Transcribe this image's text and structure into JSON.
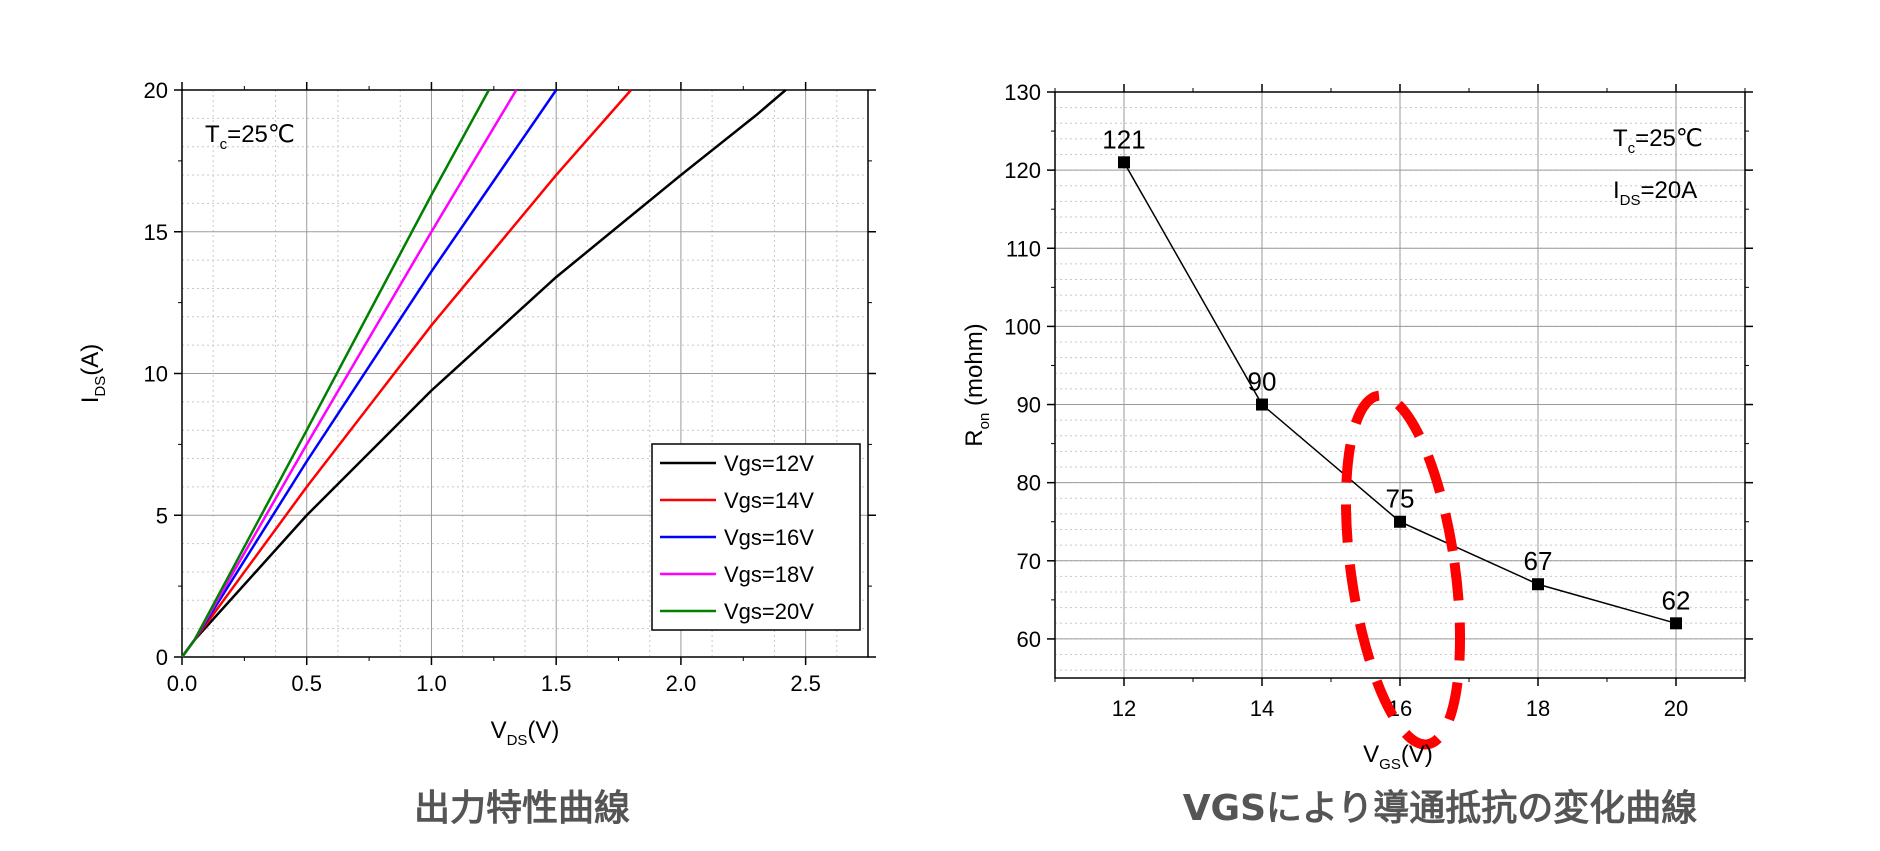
{
  "chart_data": [
    {
      "type": "line",
      "caption": "出力特性曲線",
      "annotation": {
        "main": "T",
        "sub": "c",
        "rest": "=25℃"
      },
      "xlabel": {
        "main": "V",
        "sub": "DS",
        "rest": "(V)"
      },
      "ylabel": {
        "main": "I",
        "sub": "DS",
        "rest": "(A)"
      },
      "xlim": [
        0,
        2.75
      ],
      "ylim": [
        0,
        20
      ],
      "xticks": [
        0.0,
        0.5,
        1.0,
        1.5,
        2.0,
        2.5
      ],
      "xtick_labels": [
        "0.0",
        "0.5",
        "1.0",
        "1.5",
        "2.0",
        "2.5"
      ],
      "yticks": [
        0,
        5,
        10,
        15,
        20
      ],
      "ytick_labels": [
        "0",
        "5",
        "10",
        "15",
        "20"
      ],
      "grid": true,
      "legend_position": "bottom-right",
      "series": [
        {
          "name": "Vgs=12V",
          "color": "#000000",
          "x": [
            0,
            0.05,
            0.5,
            1.0,
            1.5,
            2.0,
            2.3,
            2.42
          ],
          "y": [
            0,
            0.6,
            5.0,
            9.4,
            13.4,
            17.0,
            19.1,
            20
          ]
        },
        {
          "name": "Vgs=14V",
          "color": "#ff0000",
          "x": [
            0,
            0.05,
            0.5,
            1.0,
            1.5,
            1.8
          ],
          "y": [
            0,
            0.6,
            6.0,
            11.7,
            17.0,
            20
          ]
        },
        {
          "name": "Vgs=16V",
          "color": "#0000ff",
          "x": [
            0,
            0.05,
            0.5,
            1.0,
            1.5
          ],
          "y": [
            0,
            0.6,
            6.9,
            13.6,
            20
          ]
        },
        {
          "name": "Vgs=18V",
          "color": "#ff00ff",
          "x": [
            0,
            0.05,
            0.5,
            1.0,
            1.34
          ],
          "y": [
            0,
            0.6,
            7.5,
            15.0,
            20
          ]
        },
        {
          "name": "Vgs=20V",
          "color": "#008000",
          "x": [
            0,
            0.05,
            0.5,
            1.0,
            1.23
          ],
          "y": [
            0,
            0.6,
            8.0,
            16.3,
            20
          ]
        }
      ]
    },
    {
      "type": "line",
      "caption": "VGSにより導通抵抗の変化曲線",
      "annotations": [
        {
          "main": "T",
          "sub": "c",
          "rest": "=25℃"
        },
        {
          "main": "I",
          "sub": "DS",
          "rest": "=20A"
        }
      ],
      "xlabel": {
        "main": "V",
        "sub": "GS",
        "rest": "(V)"
      },
      "ylabel": {
        "main": "R",
        "sub": "on",
        "rest": " (mohm)"
      },
      "xlim": [
        11,
        21
      ],
      "ylim": [
        55,
        130
      ],
      "xticks": [
        12,
        14,
        16,
        18,
        20
      ],
      "xtick_labels": [
        "12",
        "14",
        "16",
        "18",
        "20"
      ],
      "yticks": [
        60,
        70,
        80,
        90,
        100,
        110,
        120,
        130
      ],
      "ytick_labels": [
        "60",
        "70",
        "80",
        "90",
        "100",
        "110",
        "120",
        "130"
      ],
      "grid": true,
      "highlight": {
        "shape": "dashed-ellipse",
        "color": "#ff0000",
        "around_x": 16
      },
      "series": [
        {
          "color": "#000000",
          "x": [
            12,
            14,
            16,
            18,
            20
          ],
          "y": [
            121,
            90,
            75,
            67,
            62
          ],
          "data_labels": [
            "121",
            "90",
            "75",
            "67",
            "62"
          ]
        }
      ]
    }
  ]
}
